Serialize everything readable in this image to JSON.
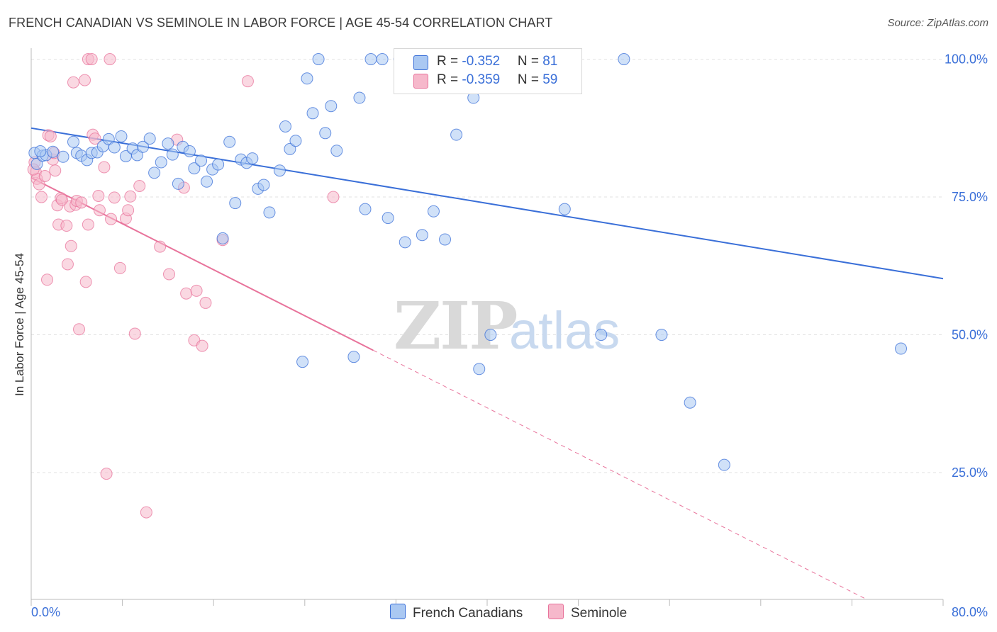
{
  "title": "FRENCH CANADIAN VS SEMINOLE IN LABOR FORCE | AGE 45-54 CORRELATION CHART",
  "source": "Source: ZipAtlas.com",
  "watermark": {
    "zip": "ZIP",
    "atlas": "atlas"
  },
  "colors": {
    "blue": "#3a6fd8",
    "blue_fill": "#aac8f2",
    "pink": "#e8739b",
    "pink_fill": "#f6b8cb",
    "grid": "#e2e2e2",
    "axis_text": "#3a6fd8"
  },
  "legend": {
    "rows": [
      {
        "r_label": "R = ",
        "r_value": "-0.352",
        "n_label": "N = ",
        "n_value": "81"
      },
      {
        "r_label": "R = ",
        "r_value": "-0.359",
        "n_label": "N = ",
        "n_value": "59"
      }
    ]
  },
  "bottom_legend": [
    "French Canadians",
    "Seminole"
  ],
  "chart_data": {
    "type": "scatter",
    "title": "FRENCH CANADIAN VS SEMINOLE IN LABOR FORCE | AGE 45-54 CORRELATION CHART",
    "xlabel": "",
    "ylabel": "In Labor Force | Age 45-54",
    "xlim": [
      0,
      80
    ],
    "ylim": [
      2,
      102
    ],
    "x_tick_labels": [
      "0.0%",
      "80.0%"
    ],
    "y_ticks": [
      25,
      50,
      75,
      100
    ],
    "y_tick_labels": [
      "25.0%",
      "50.0%",
      "75.0%",
      "100.0%"
    ],
    "grid": true,
    "legend_position": "top-center",
    "series": [
      {
        "name": "French Canadians",
        "r": -0.352,
        "n": 81,
        "trend": {
          "x0": 0,
          "y0": 87.5,
          "x1": 80,
          "y1": 60.2
        },
        "points": [
          [
            0.3,
            83.0
          ],
          [
            0.5,
            81.0
          ],
          [
            1.0,
            82.5
          ],
          [
            1.3,
            82.6
          ],
          [
            1.9,
            83.2
          ],
          [
            2.8,
            82.3
          ],
          [
            3.7,
            85.0
          ],
          [
            4.0,
            83.0
          ],
          [
            4.4,
            82.5
          ],
          [
            4.9,
            81.7
          ],
          [
            5.3,
            83.0
          ],
          [
            5.8,
            83.1
          ],
          [
            6.3,
            84.2
          ],
          [
            6.8,
            85.5
          ],
          [
            7.3,
            84.0
          ],
          [
            7.9,
            86.0
          ],
          [
            8.3,
            82.4
          ],
          [
            8.9,
            83.8
          ],
          [
            9.3,
            82.6
          ],
          [
            9.8,
            84.1
          ],
          [
            10.4,
            85.6
          ],
          [
            10.8,
            79.4
          ],
          [
            11.4,
            81.3
          ],
          [
            12.0,
            84.7
          ],
          [
            12.4,
            82.7
          ],
          [
            12.9,
            77.4
          ],
          [
            13.3,
            84.1
          ],
          [
            13.9,
            83.3
          ],
          [
            14.3,
            80.2
          ],
          [
            14.9,
            81.6
          ],
          [
            15.4,
            77.8
          ],
          [
            15.9,
            80.0
          ],
          [
            16.4,
            80.9
          ],
          [
            16.8,
            67.5
          ],
          [
            17.4,
            85.0
          ],
          [
            17.9,
            73.9
          ],
          [
            18.4,
            81.8
          ],
          [
            18.9,
            81.2
          ],
          [
            19.4,
            82.0
          ],
          [
            19.9,
            76.5
          ],
          [
            20.4,
            77.2
          ],
          [
            20.9,
            72.2
          ],
          [
            21.8,
            79.8
          ],
          [
            22.3,
            87.8
          ],
          [
            22.7,
            83.7
          ],
          [
            23.2,
            85.2
          ],
          [
            23.8,
            45.1
          ],
          [
            24.2,
            96.5
          ],
          [
            24.7,
            90.2
          ],
          [
            25.2,
            100.0
          ],
          [
            25.8,
            86.6
          ],
          [
            26.3,
            91.5
          ],
          [
            26.8,
            83.4
          ],
          [
            28.3,
            46.0
          ],
          [
            28.8,
            93.0
          ],
          [
            29.3,
            72.8
          ],
          [
            29.8,
            100.0
          ],
          [
            30.8,
            100.0
          ],
          [
            31.3,
            71.2
          ],
          [
            32.3,
            100.0
          ],
          [
            32.8,
            66.8
          ],
          [
            33.4,
            100.0
          ],
          [
            34.3,
            68.1
          ],
          [
            35.3,
            72.4
          ],
          [
            36.3,
            67.3
          ],
          [
            36.8,
            100.0
          ],
          [
            37.3,
            86.3
          ],
          [
            38.3,
            100.0
          ],
          [
            38.8,
            93.0
          ],
          [
            39.3,
            43.8
          ],
          [
            40.3,
            50.0
          ],
          [
            42.3,
            100.0
          ],
          [
            46.8,
            72.8
          ],
          [
            47.3,
            100.0
          ],
          [
            50.0,
            50.0
          ],
          [
            52.0,
            100.0
          ],
          [
            55.3,
            50.0
          ],
          [
            57.8,
            37.7
          ],
          [
            60.8,
            26.4
          ],
          [
            76.3,
            47.5
          ],
          [
            0.8,
            83.3
          ]
        ]
      },
      {
        "name": "Seminole",
        "r": -0.359,
        "n": 59,
        "trend": {
          "x0": 0,
          "y0": 78.5,
          "x1": 30,
          "y1": 47.2,
          "dash_x1": 80,
          "dash_y1": -5.0
        },
        "points": [
          [
            0.3,
            81.3
          ],
          [
            0.4,
            79.5
          ],
          [
            0.5,
            78.3
          ],
          [
            0.7,
            77.3
          ],
          [
            0.9,
            75.0
          ],
          [
            1.2,
            78.8
          ],
          [
            1.5,
            86.2
          ],
          [
            1.7,
            86.0
          ],
          [
            1.9,
            81.8
          ],
          [
            2.1,
            79.8
          ],
          [
            2.3,
            73.5
          ],
          [
            2.4,
            70.0
          ],
          [
            2.6,
            74.8
          ],
          [
            2.7,
            74.5
          ],
          [
            3.1,
            69.8
          ],
          [
            3.2,
            62.8
          ],
          [
            3.4,
            73.3
          ],
          [
            3.5,
            66.1
          ],
          [
            3.7,
            95.8
          ],
          [
            3.9,
            73.6
          ],
          [
            4.0,
            74.3
          ],
          [
            4.2,
            51.0
          ],
          [
            4.4,
            74.0
          ],
          [
            4.7,
            96.2
          ],
          [
            4.8,
            59.6
          ],
          [
            5.0,
            100.0
          ],
          [
            5.3,
            100.0
          ],
          [
            5.4,
            86.3
          ],
          [
            5.6,
            85.6
          ],
          [
            5.9,
            75.2
          ],
          [
            6.0,
            72.6
          ],
          [
            6.4,
            80.4
          ],
          [
            6.6,
            24.8
          ],
          [
            6.9,
            100.0
          ],
          [
            7.0,
            71.0
          ],
          [
            7.3,
            74.9
          ],
          [
            7.8,
            62.1
          ],
          [
            8.3,
            71.1
          ],
          [
            8.5,
            72.6
          ],
          [
            8.7,
            75.1
          ],
          [
            9.1,
            50.2
          ],
          [
            10.1,
            17.8
          ],
          [
            11.3,
            66.0
          ],
          [
            12.1,
            61.0
          ],
          [
            12.8,
            85.4
          ],
          [
            13.4,
            76.7
          ],
          [
            13.6,
            57.5
          ],
          [
            14.3,
            49.0
          ],
          [
            14.5,
            58.0
          ],
          [
            15.0,
            48.0
          ],
          [
            15.3,
            55.8
          ],
          [
            16.8,
            67.2
          ],
          [
            19.0,
            96.0
          ],
          [
            26.5,
            75.0
          ],
          [
            2.0,
            83.0
          ],
          [
            0.2,
            80.0
          ],
          [
            1.4,
            60.0
          ],
          [
            9.5,
            77.0
          ],
          [
            5.0,
            70.0
          ]
        ]
      }
    ]
  }
}
